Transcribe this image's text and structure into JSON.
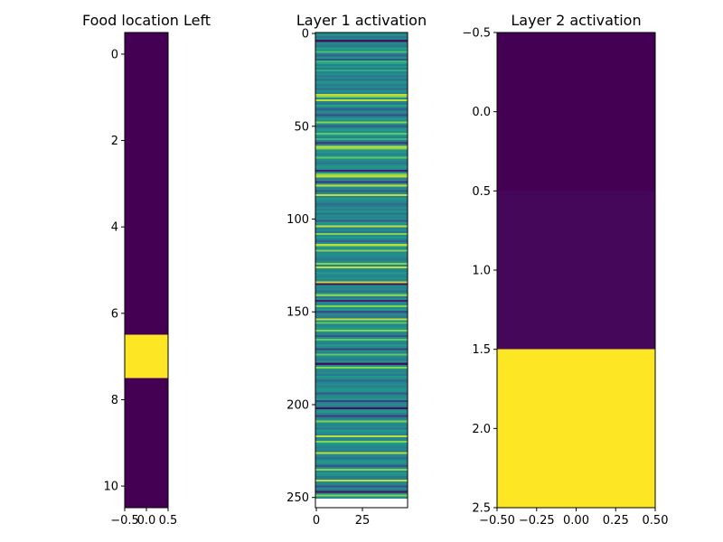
{
  "chart_data": [
    {
      "type": "heatmap",
      "title": "Food location Left",
      "colormap": "viridis",
      "extent": {
        "x": [
          -0.5,
          0.5
        ],
        "y": [
          -0.5,
          10.5
        ]
      },
      "y_inverted": true,
      "columns": 1,
      "cells": [
        0,
        0,
        0,
        0,
        0,
        0,
        0,
        1,
        0,
        0,
        0
      ],
      "xticks": [
        -0.5,
        0.0,
        0.5
      ],
      "xtick_labels": [
        "−0.5",
        "0.0",
        "0.5"
      ],
      "yticks": [
        0,
        2,
        4,
        6,
        8,
        10
      ],
      "ytick_labels": [
        "0",
        "2",
        "4",
        "6",
        "8",
        "10"
      ]
    },
    {
      "type": "heatmap",
      "title": "Layer 1 activation",
      "colormap": "viridis",
      "extent": {
        "x": [
          -0.5,
          49.5
        ],
        "y": [
          -0.5,
          255.5
        ]
      },
      "y_inverted": true,
      "columns": 1,
      "cells": [
        0.55,
        0.55,
        0.45,
        0.5,
        0.05,
        0.55,
        0.5,
        0.45,
        0.65,
        0.55,
        0.8,
        0.5,
        0.35,
        0.55,
        0.3,
        0.75,
        0.65,
        0.5,
        0.6,
        0.45,
        0.7,
        0.5,
        0.55,
        0.45,
        0.55,
        0.4,
        0.6,
        0.55,
        0.45,
        0.55,
        0.4,
        0.55,
        0.5,
        0.95,
        0.9,
        0.55,
        0.95,
        0.5,
        0.45,
        0.65,
        0.5,
        0.35,
        0.55,
        0.5,
        0.25,
        0.5,
        0.6,
        0.55,
        0.9,
        0.55,
        0.35,
        0.55,
        0.6,
        0.55,
        0.85,
        0.6,
        0.5,
        0.75,
        0.5,
        0.2,
        0.55,
        0.95,
        0.9,
        0.55,
        0.6,
        0.5,
        0.55,
        0.85,
        0.55,
        0.5,
        0.45,
        0.55,
        0.6,
        0.55,
        0.1,
        0.55,
        0.9,
        0.95,
        0.5,
        0.55,
        0.15,
        0.6,
        0.95,
        0.55,
        0.5,
        0.3,
        0.55,
        0.95,
        0.5,
        0.6,
        0.55,
        0.5,
        0.4,
        0.45,
        0.55,
        0.5,
        0.6,
        0.4,
        0.55,
        0.5,
        0.55,
        0.3,
        0.6,
        0.55,
        0.95,
        0.5,
        0.55,
        0.45,
        0.9,
        0.55,
        0.6,
        0.5,
        0.35,
        0.55,
        0.95,
        0.6,
        0.55,
        0.9,
        0.5,
        0.55,
        0.55,
        0.5,
        0.45,
        0.55,
        0.9,
        0.5,
        0.95,
        0.55,
        0.5,
        0.6,
        0.55,
        0.5,
        0.55,
        0.5,
        0.95,
        0.05,
        0.55,
        0.5,
        0.55,
        0.4,
        0.55,
        0.9,
        0.45,
        0.55,
        0.1,
        0.5,
        0.55,
        0.9,
        0.55,
        0.6,
        0.25,
        0.55,
        0.5,
        0.45,
        0.95,
        0.55,
        0.85,
        0.5,
        0.55,
        0.6,
        0.9,
        0.55,
        0.5,
        0.3,
        0.55,
        0.85,
        0.55,
        0.5,
        0.6,
        0.55,
        0.2,
        0.55,
        0.5,
        0.85,
        0.55,
        0.5,
        0.45,
        0.6,
        0.05,
        0.55,
        0.9,
        0.55,
        0.5,
        0.55,
        0.45,
        0.6,
        0.55,
        0.4,
        0.5,
        0.55,
        0.5,
        0.55,
        0.6,
        0.55,
        0.3,
        0.5,
        0.55,
        0.6,
        0.2,
        0.5,
        0.55,
        0.45,
        0.05,
        0.55,
        0.6,
        0.5,
        0.2,
        0.45,
        0.55,
        0.9,
        0.55,
        0.5,
        0.55,
        0.45,
        0.6,
        0.55,
        0.5,
        0.95,
        0.5,
        0.55,
        0.9,
        0.6,
        0.55,
        0.5,
        0.55,
        0.45,
        0.95,
        0.55,
        0.5,
        0.4,
        0.55,
        0.6,
        0.55,
        0.3,
        0.55,
        0.9,
        0.5,
        0.6,
        0.55,
        0.45,
        0.5,
        0.95,
        0.55,
        0.5,
        0.25,
        0.55,
        0.45,
        0.05,
        0.55,
        0.9,
        0.55
      ],
      "xticks": [
        0,
        25
      ],
      "xtick_labels": [
        "0",
        "25"
      ],
      "yticks": [
        0,
        50,
        100,
        150,
        200,
        250
      ],
      "ytick_labels": [
        "0",
        "50",
        "100",
        "150",
        "200",
        "250"
      ]
    },
    {
      "type": "heatmap",
      "title": "Layer 2 activation",
      "colormap": "viridis",
      "extent": {
        "x": [
          -0.5,
          0.5
        ],
        "y": [
          -0.5,
          2.5
        ]
      },
      "y_inverted": true,
      "columns": 1,
      "cells": [
        0,
        0.02,
        1
      ],
      "xticks": [
        -0.5,
        -0.25,
        0.0,
        0.25,
        0.5
      ],
      "xtick_labels": [
        "−0.50",
        "−0.25",
        "0.00",
        "0.25",
        "0.50"
      ],
      "yticks": [
        -0.5,
        0.0,
        0.5,
        1.0,
        1.5,
        2.0,
        2.5
      ],
      "ytick_labels": [
        "−0.5",
        "0.0",
        "0.5",
        "1.0",
        "1.5",
        "2.0",
        "2.5"
      ]
    }
  ]
}
